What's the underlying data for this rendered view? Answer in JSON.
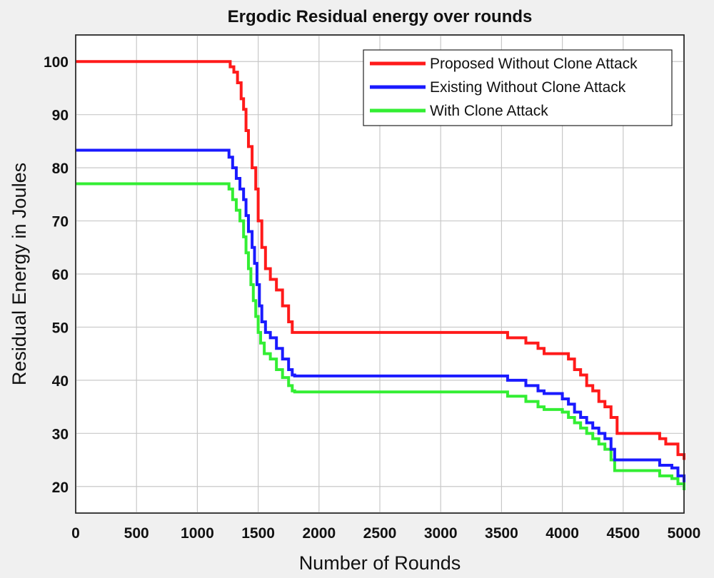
{
  "chart_data": {
    "type": "line",
    "title": "Ergodic Residual energy over rounds",
    "xlabel": "Number of Rounds",
    "ylabel": "Residual Energy in Joules",
    "xlim": [
      0,
      5000
    ],
    "ylim": [
      15,
      105
    ],
    "xticks": [
      0,
      500,
      1000,
      1500,
      2000,
      2500,
      3000,
      3500,
      4000,
      4500,
      5000
    ],
    "yticks": [
      20,
      30,
      40,
      50,
      60,
      70,
      80,
      90,
      100
    ],
    "grid": true,
    "legend_position": "top-right",
    "series": [
      {
        "name": "Proposed Without Clone Attack",
        "color": "#ff1a1a",
        "x": [
          0,
          1230,
          1270,
          1300,
          1330,
          1360,
          1380,
          1400,
          1420,
          1450,
          1480,
          1500,
          1530,
          1560,
          1600,
          1650,
          1700,
          1750,
          1780,
          1800,
          3500,
          3550,
          3700,
          3800,
          3850,
          4000,
          4050,
          4100,
          4150,
          4200,
          4250,
          4300,
          4350,
          4400,
          4450,
          4500,
          4600,
          4750,
          4800,
          4850,
          4900,
          4950,
          5000
        ],
        "y": [
          100,
          100,
          99,
          98,
          96,
          93,
          91,
          87,
          84,
          80,
          76,
          70,
          65,
          61,
          59,
          57,
          54,
          51,
          49,
          49,
          49,
          48,
          47,
          46,
          45,
          45,
          44,
          42,
          41,
          39,
          38,
          36,
          35,
          33,
          30,
          30,
          30,
          30,
          29,
          28,
          28,
          26,
          25
        ]
      },
      {
        "name": "Existing Without Clone Attack",
        "color": "#1a1aff",
        "x": [
          0,
          1230,
          1260,
          1290,
          1320,
          1350,
          1380,
          1400,
          1420,
          1450,
          1470,
          1490,
          1510,
          1530,
          1560,
          1600,
          1650,
          1700,
          1750,
          1780,
          1800,
          3500,
          3550,
          3700,
          3800,
          3850,
          4000,
          4050,
          4100,
          4150,
          4200,
          4250,
          4300,
          4350,
          4400,
          4430,
          4500,
          4750,
          4800,
          4900,
          4950,
          5000
        ],
        "y": [
          83.3,
          83.3,
          82,
          80,
          78,
          76,
          74,
          71,
          68,
          65,
          62,
          58,
          54,
          51,
          49,
          48,
          46,
          44,
          42,
          41,
          40.8,
          40.8,
          40,
          39,
          38,
          37.5,
          36.5,
          35.5,
          34,
          33,
          32,
          31,
          30,
          29,
          27,
          25,
          25,
          25,
          24,
          23.5,
          22,
          20.8
        ]
      },
      {
        "name": "With Clone Attack",
        "color": "#33ee33",
        "x": [
          0,
          1230,
          1260,
          1290,
          1320,
          1350,
          1380,
          1400,
          1420,
          1440,
          1460,
          1480,
          1500,
          1520,
          1550,
          1600,
          1650,
          1700,
          1750,
          1780,
          1800,
          3500,
          3550,
          3700,
          3800,
          3850,
          4000,
          4050,
          4100,
          4150,
          4200,
          4250,
          4300,
          4350,
          4400,
          4430,
          4500,
          4750,
          4800,
          4900,
          4950,
          5000
        ],
        "y": [
          77,
          77,
          76,
          74,
          72,
          70,
          67,
          64,
          61,
          58,
          55,
          52,
          49,
          47,
          45,
          44,
          42,
          40.5,
          39,
          38,
          37.8,
          37.8,
          37,
          36,
          35,
          34.5,
          34,
          33,
          32,
          31,
          30,
          29,
          28,
          27,
          25,
          23,
          23,
          23,
          22,
          21.5,
          20.5,
          19.3
        ]
      }
    ]
  }
}
